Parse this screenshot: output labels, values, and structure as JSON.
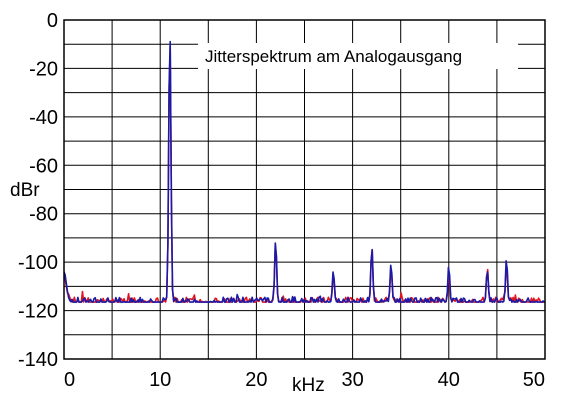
{
  "chart_data": {
    "type": "line",
    "title": "Jitterspektrum am Analogausgang",
    "xlabel": "kHz",
    "ylabel": "dBr",
    "xlim": [
      0,
      50
    ],
    "ylim": [
      -140,
      0
    ],
    "x_ticks": [
      0,
      10,
      20,
      30,
      40,
      50
    ],
    "y_ticks": [
      0,
      -20,
      -40,
      -60,
      -80,
      -100,
      -120,
      -140
    ],
    "x_tick_labels": [
      "0",
      "10",
      "20",
      "30",
      "40",
      "50"
    ],
    "y_tick_labels": [
      "0",
      "-20",
      "-40",
      "-60",
      "-80",
      "-100",
      "-120",
      "-140"
    ],
    "grid": true,
    "colors": {
      "series_red": "#e0141e",
      "series_blue": "#1a1aa8",
      "grid": "#000000"
    },
    "noise_floor_db": -116.5,
    "series": [
      {
        "color": "#e0141e",
        "peaks": [
          {
            "x": 0.0,
            "y": -106
          },
          {
            "x": 11.0,
            "y": -4
          },
          {
            "x": 22.0,
            "y": -91
          },
          {
            "x": 28.0,
            "y": -105
          },
          {
            "x": 32.0,
            "y": -93
          },
          {
            "x": 34.0,
            "y": -102
          },
          {
            "x": 40.0,
            "y": -105
          },
          {
            "x": 44.0,
            "y": -102
          },
          {
            "x": 46.0,
            "y": -101
          }
        ]
      },
      {
        "color": "#1a1aa8",
        "peaks": [
          {
            "x": 0.0,
            "y": -104
          },
          {
            "x": 11.0,
            "y": -2
          },
          {
            "x": 22.0,
            "y": -90
          },
          {
            "x": 28.0,
            "y": -103
          },
          {
            "x": 32.0,
            "y": -93
          },
          {
            "x": 34.0,
            "y": -100
          },
          {
            "x": 40.0,
            "y": -101
          },
          {
            "x": 44.0,
            "y": -103
          },
          {
            "x": 46.0,
            "y": -98
          }
        ]
      }
    ]
  }
}
